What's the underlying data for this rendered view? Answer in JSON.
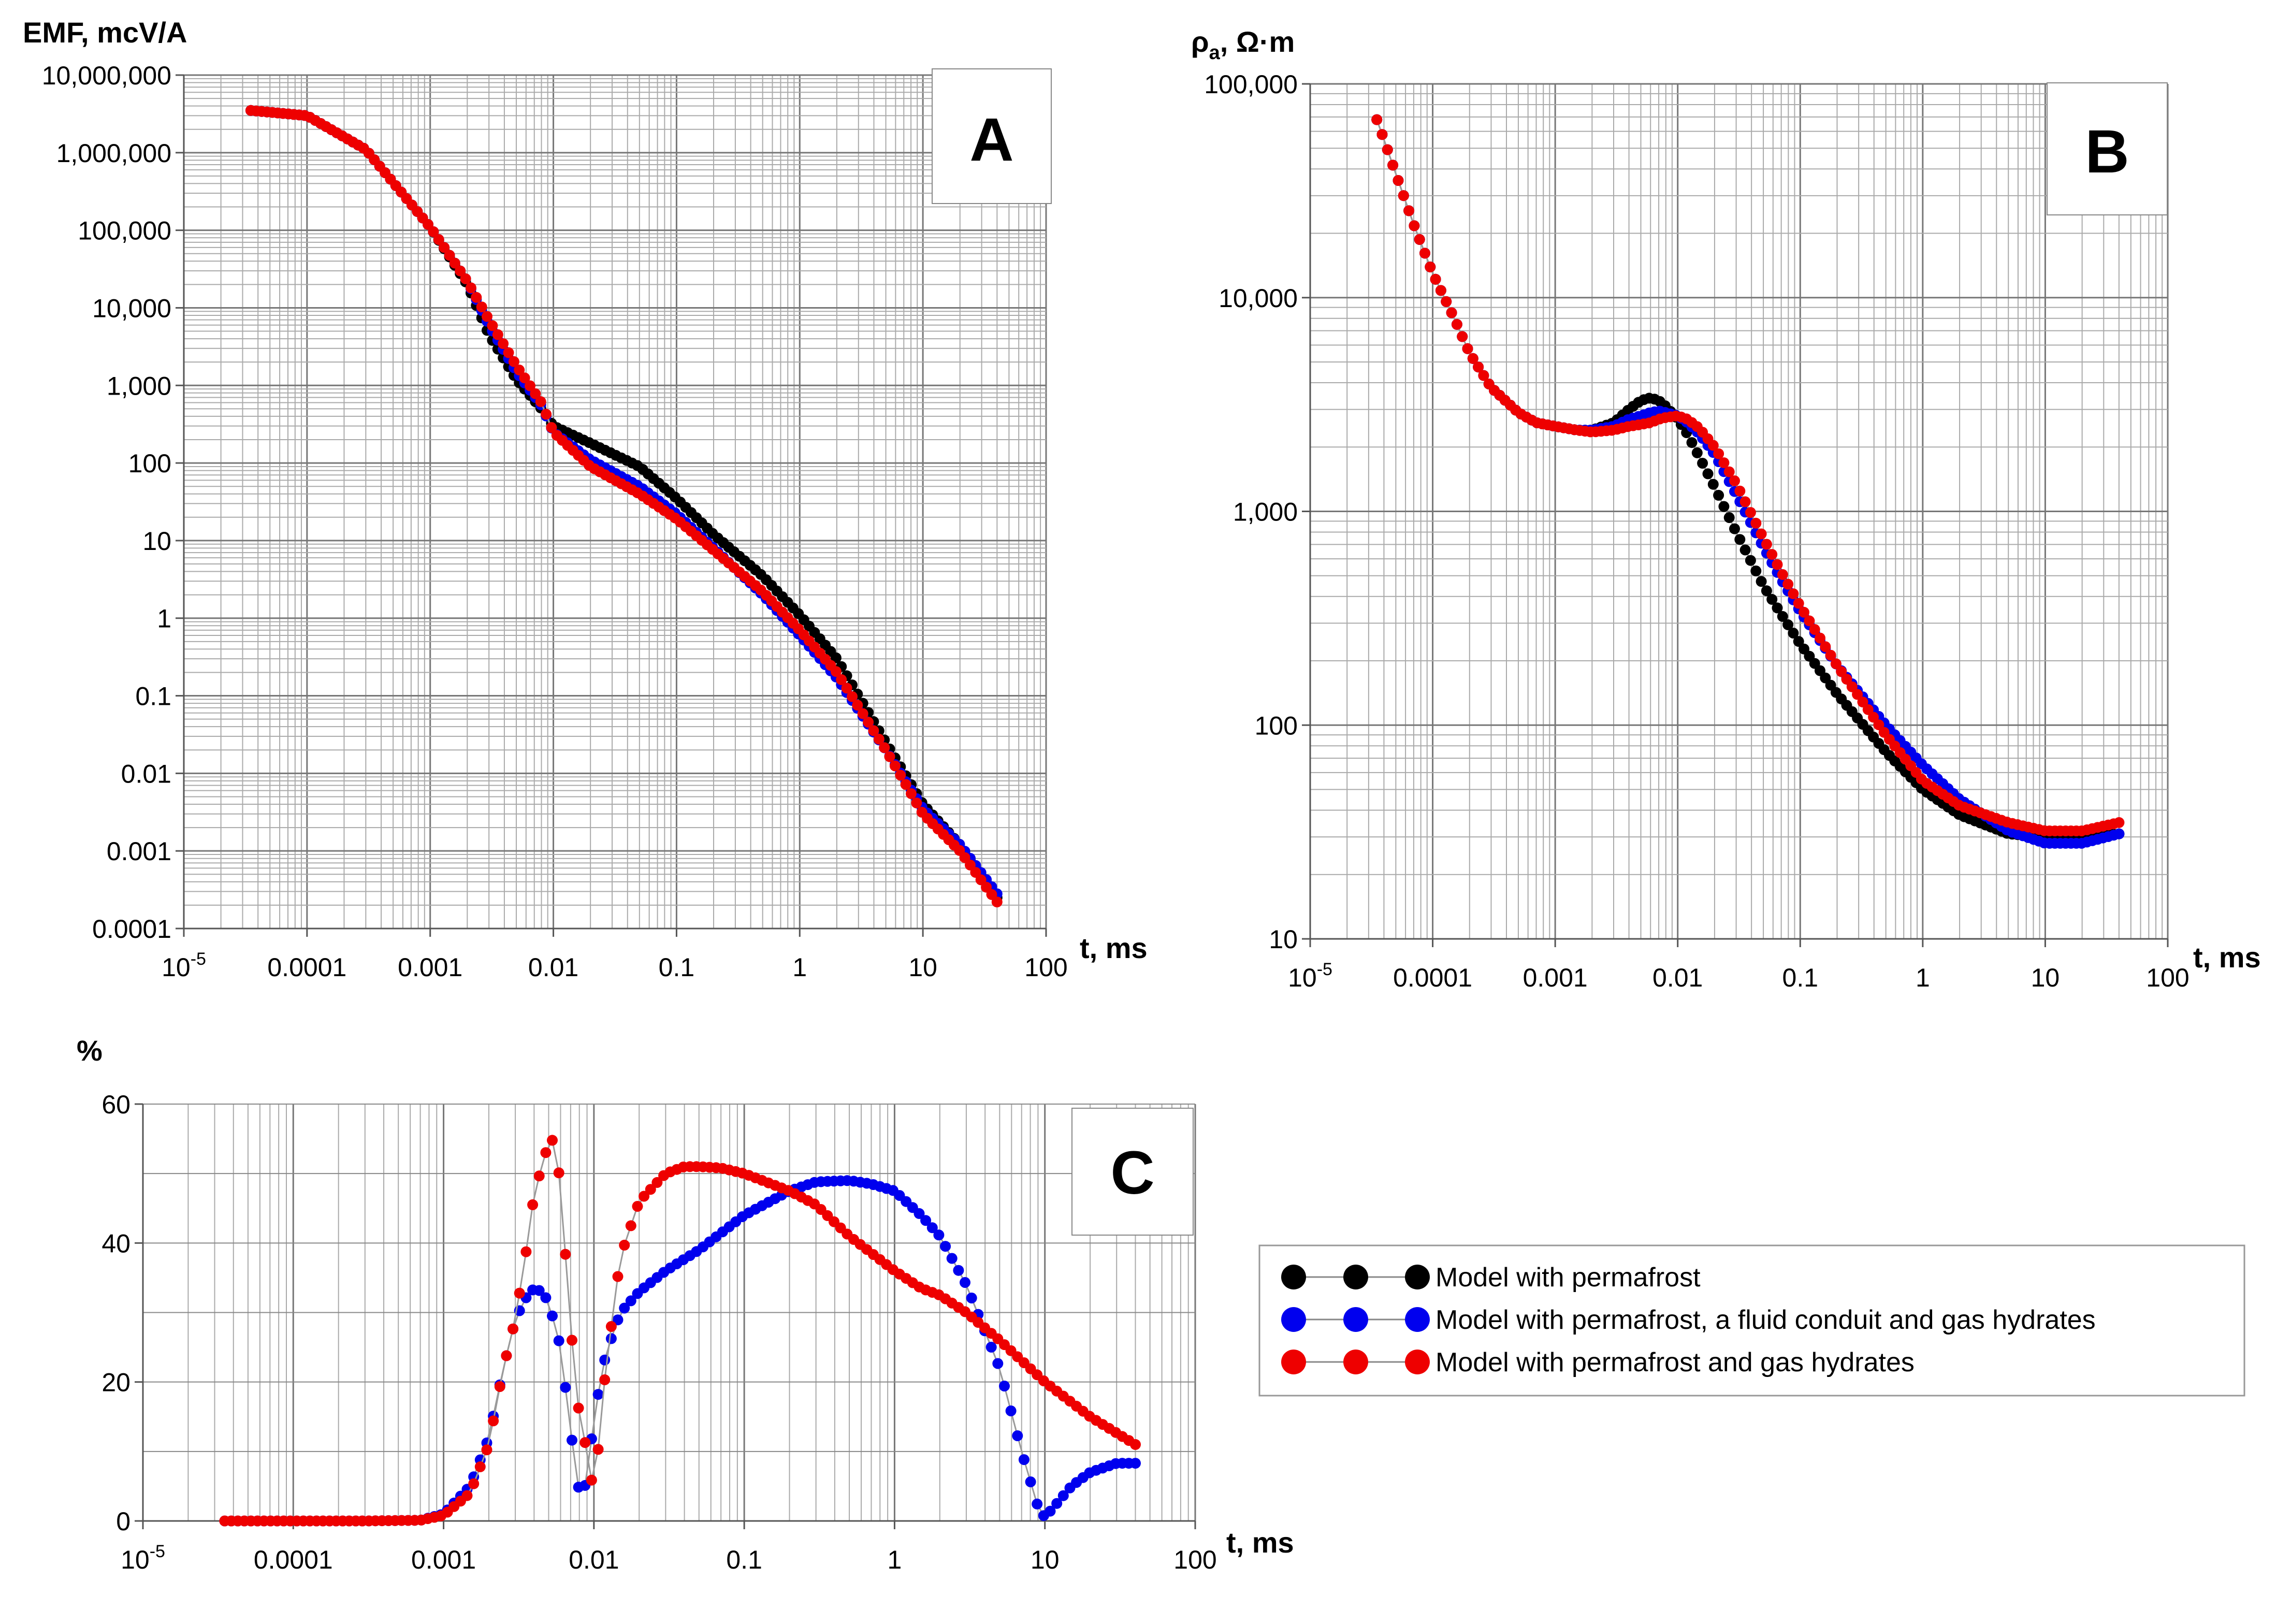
{
  "chart_data": [
    {
      "id": "A",
      "type": "scatter",
      "panel_label": "A",
      "ylabel": "EMF, mcV/A",
      "xlabel": "t, ms",
      "xscale": "log",
      "yscale": "log",
      "xlim": [
        1e-05,
        100
      ],
      "ylim": [
        0.0001,
        10000000
      ],
      "grid": true,
      "x_ticks": [
        {
          "v": 1e-05,
          "base": "10",
          "exp": "-5"
        },
        {
          "v": 0.0001,
          "label": "0.0001"
        },
        {
          "v": 0.001,
          "label": "0.001"
        },
        {
          "v": 0.01,
          "label": "0.01"
        },
        {
          "v": 0.1,
          "label": "0.1"
        },
        {
          "v": 1,
          "label": "1"
        },
        {
          "v": 10,
          "label": "10"
        },
        {
          "v": 100,
          "label": "100"
        }
      ],
      "y_ticks": [
        {
          "v": 0.0001,
          "label": "0.0001"
        },
        {
          "v": 0.001,
          "label": "0.001"
        },
        {
          "v": 0.01,
          "label": "0.01"
        },
        {
          "v": 0.1,
          "label": "0.1"
        },
        {
          "v": 1,
          "label": "1"
        },
        {
          "v": 10,
          "label": "10"
        },
        {
          "v": 100,
          "label": "100"
        },
        {
          "v": 1000,
          "label": "1,000"
        },
        {
          "v": 10000,
          "label": "10,000"
        },
        {
          "v": 100000,
          "label": "100,000"
        },
        {
          "v": 1000000,
          "label": "1,000,000"
        },
        {
          "v": 10000000,
          "label": "10,000,000"
        }
      ],
      "series": [
        {
          "name": "Model with permafrost",
          "color": "#000000",
          "x": [
            3.5e-05,
            0.0001,
            0.0003,
            0.001,
            0.002,
            0.003,
            0.005,
            0.008,
            0.01,
            0.02,
            0.05,
            0.1,
            0.2,
            0.5,
            1,
            2,
            5,
            10,
            20,
            40
          ],
          "y": [
            3500000,
            3000000,
            1100000,
            110000,
            20000,
            4500,
            1200,
            500,
            300,
            180,
            90,
            35,
            12,
            3.5,
            1.1,
            0.3,
            0.025,
            0.004,
            0.0012,
            0.00025
          ]
        },
        {
          "name": "Model with permafrost, a fluid conduit and gas hydrates",
          "color": "#0000ee",
          "x": [
            3.5e-05,
            0.0001,
            0.0003,
            0.001,
            0.002,
            0.003,
            0.005,
            0.008,
            0.01,
            0.02,
            0.05,
            0.1,
            0.2,
            0.5,
            1,
            2,
            5,
            10,
            20,
            40
          ],
          "y": [
            3500000,
            3000000,
            1100000,
            110000,
            22000,
            6000,
            1500,
            550,
            250,
            110,
            50,
            22,
            8,
            2,
            0.6,
            0.17,
            0.02,
            0.0035,
            0.0012,
            0.00028
          ]
        },
        {
          "name": "Model with permafrost and gas hydrates",
          "color": "#ee0000",
          "x": [
            3.5e-05,
            0.0001,
            0.0003,
            0.001,
            0.002,
            0.003,
            0.005,
            0.008,
            0.01,
            0.02,
            0.05,
            0.1,
            0.2,
            0.5,
            1,
            2,
            5,
            10,
            20,
            40
          ],
          "y": [
            3500000,
            3000000,
            1100000,
            110000,
            22000,
            7000,
            1800,
            600,
            250,
            90,
            40,
            19,
            7.5,
            2.2,
            0.7,
            0.2,
            0.02,
            0.003,
            0.001,
            0.00022
          ]
        }
      ]
    },
    {
      "id": "B",
      "type": "scatter",
      "panel_label": "B",
      "ylabel": "ρa, Ω·m",
      "ylabel_main": "ρ",
      "ylabel_sub": "a",
      "ylabel_rest": ", Ω·m",
      "xlabel": "t, ms",
      "xscale": "log",
      "yscale": "log",
      "xlim": [
        1e-05,
        100
      ],
      "ylim": [
        10,
        100000
      ],
      "grid": true,
      "x_ticks": [
        {
          "v": 1e-05,
          "base": "10",
          "exp": "-5"
        },
        {
          "v": 0.0001,
          "label": "0.0001"
        },
        {
          "v": 0.001,
          "label": "0.001"
        },
        {
          "v": 0.01,
          "label": "0.01"
        },
        {
          "v": 0.1,
          "label": "0.1"
        },
        {
          "v": 1,
          "label": "1"
        },
        {
          "v": 10,
          "label": "10"
        },
        {
          "v": 100,
          "label": "100"
        }
      ],
      "y_ticks": [
        {
          "v": 10,
          "label": "10"
        },
        {
          "v": 100,
          "label": "100"
        },
        {
          "v": 1000,
          "label": "1,000"
        },
        {
          "v": 10000,
          "label": "10,000"
        },
        {
          "v": 100000,
          "label": "100,000"
        }
      ],
      "series": [
        {
          "name": "Model with permafrost",
          "color": "#000000",
          "x": [
            3.5e-05,
            4e-05,
            5e-05,
            7e-05,
            0.0001,
            0.00015,
            0.0002,
            0.0003,
            0.0005,
            0.0007,
            0.001,
            0.0015,
            0.002,
            0.003,
            0.004,
            0.005,
            0.006,
            0.007,
            0.008,
            0.01,
            0.012,
            0.015,
            0.02,
            0.03,
            0.05,
            0.07,
            0.1,
            0.2,
            0.5,
            1,
            2,
            5,
            10,
            20,
            40
          ],
          "y": [
            68000,
            55000,
            38000,
            22000,
            13000,
            8000,
            5500,
            3800,
            2900,
            2600,
            2500,
            2400,
            2400,
            2600,
            3000,
            3300,
            3400,
            3300,
            3100,
            2700,
            2300,
            1800,
            1300,
            800,
            450,
            330,
            240,
            140,
            75,
            50,
            38,
            31,
            30,
            30,
            31
          ]
        },
        {
          "name": "Model with permafrost, a fluid conduit and gas hydrates",
          "color": "#0000ee",
          "x": [
            3.5e-05,
            4e-05,
            5e-05,
            7e-05,
            0.0001,
            0.00015,
            0.0002,
            0.0003,
            0.0005,
            0.0007,
            0.001,
            0.0015,
            0.002,
            0.003,
            0.004,
            0.005,
            0.006,
            0.007,
            0.008,
            0.01,
            0.012,
            0.015,
            0.02,
            0.03,
            0.05,
            0.07,
            0.1,
            0.2,
            0.5,
            1,
            2,
            5,
            10,
            20,
            40
          ],
          "y": [
            68000,
            55000,
            38000,
            22000,
            13000,
            8000,
            5500,
            3800,
            2900,
            2600,
            2500,
            2400,
            2400,
            2500,
            2700,
            2800,
            2900,
            2950,
            2900,
            2800,
            2600,
            2300,
            1850,
            1200,
            680,
            480,
            340,
            190,
            100,
            65,
            45,
            32,
            28,
            28,
            31
          ]
        },
        {
          "name": "Model with permafrost and gas hydrates",
          "color": "#ee0000",
          "x": [
            3.5e-05,
            4e-05,
            5e-05,
            7e-05,
            0.0001,
            0.00015,
            0.0002,
            0.0003,
            0.0005,
            0.0007,
            0.001,
            0.0015,
            0.002,
            0.003,
            0.004,
            0.005,
            0.006,
            0.007,
            0.008,
            0.01,
            0.012,
            0.015,
            0.02,
            0.03,
            0.05,
            0.07,
            0.1,
            0.2,
            0.5,
            1,
            2,
            5,
            10,
            20,
            40
          ],
          "y": [
            68000,
            55000,
            38000,
            22000,
            13000,
            8000,
            5500,
            3800,
            2900,
            2600,
            2500,
            2400,
            2350,
            2400,
            2500,
            2550,
            2600,
            2700,
            2750,
            2800,
            2700,
            2450,
            2000,
            1350,
            750,
            520,
            360,
            190,
            90,
            55,
            42,
            35,
            32,
            32,
            35
          ]
        }
      ]
    },
    {
      "id": "C",
      "type": "scatter",
      "panel_label": "C",
      "ylabel": "%",
      "xlabel": "t, ms",
      "xscale": "log",
      "yscale": "linear",
      "xlim": [
        1e-05,
        100
      ],
      "ylim": [
        0,
        60
      ],
      "grid": true,
      "x_ticks": [
        {
          "v": 1e-05,
          "base": "10",
          "exp": "-5"
        },
        {
          "v": 0.0001,
          "label": "0.0001"
        },
        {
          "v": 0.001,
          "label": "0.001"
        },
        {
          "v": 0.01,
          "label": "0.01"
        },
        {
          "v": 0.1,
          "label": "0.1"
        },
        {
          "v": 1,
          "label": "1"
        },
        {
          "v": 10,
          "label": "10"
        },
        {
          "v": 100,
          "label": "100"
        }
      ],
      "y_ticks": [
        {
          "v": 0,
          "label": "0"
        },
        {
          "v": 20,
          "label": "20"
        },
        {
          "v": 40,
          "label": "40"
        },
        {
          "v": 60,
          "label": "60"
        }
      ],
      "series": [
        {
          "name": "Model with permafrost, a fluid conduit and gas hydrates",
          "color": "#0000ee",
          "x": [
            3.5e-05,
            0.0001,
            0.0003,
            0.0007,
            0.001,
            0.0015,
            0.002,
            0.0025,
            0.003,
            0.0035,
            0.004,
            0.0045,
            0.005,
            0.006,
            0.007,
            0.008,
            0.009,
            0.01,
            0.012,
            0.015,
            0.02,
            0.03,
            0.05,
            0.1,
            0.2,
            0.3,
            0.5,
            0.7,
            1,
            1.5,
            2,
            3,
            5,
            7,
            9,
            10,
            15,
            20,
            30,
            40
          ],
          "y": [
            0,
            0,
            0,
            0.1,
            1,
            5,
            12,
            22,
            29,
            32,
            33.5,
            33,
            31.5,
            25,
            13,
            4,
            5.5,
            15,
            24,
            30,
            33,
            36,
            39,
            44,
            47.5,
            48.8,
            49,
            48.5,
            47.5,
            44,
            41,
            34,
            22,
            10,
            2,
            0.5,
            5,
            7,
            8.3,
            8.3
          ]
        },
        {
          "name": "Model with permafrost and gas hydrates",
          "color": "#ee0000",
          "x": [
            3.5e-05,
            0.0001,
            0.0003,
            0.0007,
            0.001,
            0.0015,
            0.002,
            0.0025,
            0.003,
            0.0035,
            0.004,
            0.0045,
            0.005,
            0.0055,
            0.006,
            0.007,
            0.008,
            0.009,
            0.01,
            0.012,
            0.015,
            0.02,
            0.03,
            0.04,
            0.05,
            0.07,
            0.1,
            0.2,
            0.3,
            0.5,
            1,
            1.5,
            2,
            3,
            5,
            10,
            20,
            40
          ],
          "y": [
            0,
            0,
            0,
            0.1,
            0.8,
            4,
            11,
            22,
            29,
            38,
            47,
            51,
            54.5,
            55,
            48,
            28,
            15,
            10,
            3.8,
            22,
            38,
            46,
            50,
            51,
            51,
            50.8,
            50,
            47.5,
            45.5,
            41,
            36,
            33.5,
            32.5,
            30,
            26,
            20,
            15,
            11
          ]
        }
      ]
    }
  ],
  "legend": {
    "entries": [
      {
        "label": "Model with permafrost",
        "color": "#000000"
      },
      {
        "label": "Model with permafrost, a fluid conduit and gas hydrates",
        "color": "#0000ee"
      },
      {
        "label": "Model with permafrost and gas hydrates",
        "color": "#ee0000"
      }
    ]
  }
}
